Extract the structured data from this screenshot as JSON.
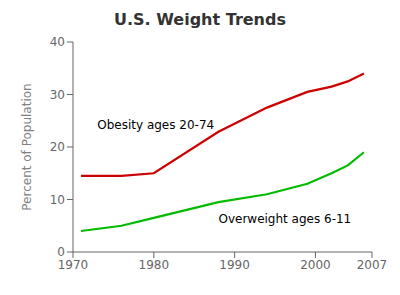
{
  "chart_data": {
    "type": "line",
    "title": "U.S. Weight Trends",
    "ylabel": "Percent of Population",
    "x": [
      1971,
      1976,
      1980,
      1988,
      1994,
      1999,
      2002,
      2004,
      2006
    ],
    "series": [
      {
        "color": "#cc0000",
        "values": [
          14.5,
          14.5,
          15.0,
          22.9,
          27.5,
          30.5,
          31.5,
          32.5,
          34.0
        ]
      },
      {
        "color": "#00bb00",
        "values": [
          4.0,
          5.0,
          6.5,
          9.5,
          11.0,
          13.0,
          15.0,
          16.5,
          19.0
        ]
      }
    ],
    "annotations": [
      {
        "text": "Obesity ages 20-74",
        "x": 1973,
        "y": 23.5
      },
      {
        "text": "Overweight ages 6-11",
        "x": 1988,
        "y": 5.5
      }
    ],
    "xlim": [
      1970,
      2007
    ],
    "ylim": [
      0,
      40
    ],
    "xticks": [
      1970,
      1980,
      1990,
      2000,
      2007
    ],
    "yticks": [
      0,
      10,
      20,
      30,
      40
    ],
    "grid": false
  }
}
